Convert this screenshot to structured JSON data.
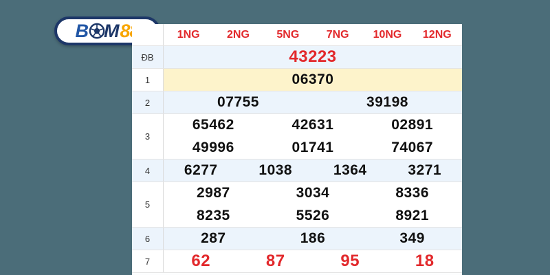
{
  "page": {
    "background_color": "#4b6d79"
  },
  "logo": {
    "name": "BOM88",
    "part_b": "B",
    "part_m": "M",
    "part_88": "88",
    "ball_icon": "soccer-ball-icon",
    "colors": {
      "border_navy": "#1d3768",
      "b_blue": "#2156a5",
      "gold": "#f8a600"
    }
  },
  "table": {
    "headers": [
      "1NG",
      "2NG",
      "5NG",
      "7NG",
      "10NG",
      "12NG"
    ],
    "header_color": "#e2282b",
    "rows": [
      {
        "label": "ĐB",
        "bg": "blue",
        "red": true,
        "highlight": false,
        "lines": [
          [
            "43223"
          ]
        ]
      },
      {
        "label": "1",
        "bg": "white",
        "red": false,
        "highlight": true,
        "lines": [
          [
            "06370"
          ]
        ]
      },
      {
        "label": "2",
        "bg": "blue",
        "red": false,
        "highlight": false,
        "lines": [
          [
            "07755",
            "39198"
          ]
        ]
      },
      {
        "label": "3",
        "bg": "white",
        "red": false,
        "highlight": false,
        "lines": [
          [
            "65462",
            "42631",
            "02891"
          ],
          [
            "49996",
            "01741",
            "74067"
          ]
        ]
      },
      {
        "label": "4",
        "bg": "blue",
        "red": false,
        "highlight": false,
        "lines": [
          [
            "6277",
            "1038",
            "1364",
            "3271"
          ]
        ]
      },
      {
        "label": "5",
        "bg": "white",
        "red": false,
        "highlight": false,
        "lines": [
          [
            "2987",
            "3034",
            "8336"
          ],
          [
            "8235",
            "5526",
            "8921"
          ]
        ]
      },
      {
        "label": "6",
        "bg": "blue",
        "red": false,
        "highlight": false,
        "lines": [
          [
            "287",
            "186",
            "349"
          ]
        ]
      },
      {
        "label": "7",
        "bg": "white",
        "red": true,
        "highlight": false,
        "lines": [
          [
            "62",
            "87",
            "95",
            "18"
          ]
        ]
      }
    ],
    "row_colors": {
      "alt_blue": "#ecf4fc",
      "highlight_yellow": "#fdf3cb",
      "value_black": "#111111",
      "value_red": "#e2282b"
    },
    "single_row_height": 33,
    "double_row_height": 66
  }
}
